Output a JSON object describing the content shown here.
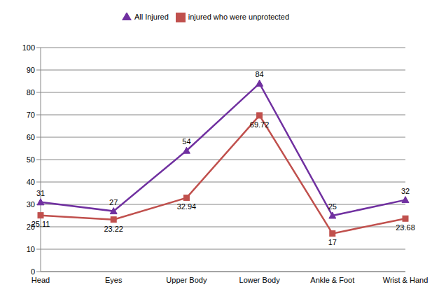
{
  "chart_data": {
    "type": "line",
    "categories": [
      "Head",
      "Eyes",
      "Upper Body",
      "Lower Body",
      "Ankle & Foot",
      "Wrist & Hand"
    ],
    "series": [
      {
        "name": "All Injured",
        "color": "#7030a0",
        "marker": "triangle",
        "line_style": "solid",
        "values": [
          31,
          27,
          54,
          84,
          25,
          32
        ]
      },
      {
        "name": "injured who were unprotected",
        "color": "#c0504d",
        "marker": "square",
        "line_style": "solid",
        "values": [
          25.11,
          23.22,
          32.94,
          69.72,
          17,
          23.68
        ]
      }
    ],
    "ylim": [
      0,
      100
    ],
    "yticks": [
      0,
      10,
      20,
      30,
      40,
      50,
      60,
      70,
      80,
      90,
      100
    ],
    "grid": true,
    "legend": "top",
    "data_labels": true
  }
}
